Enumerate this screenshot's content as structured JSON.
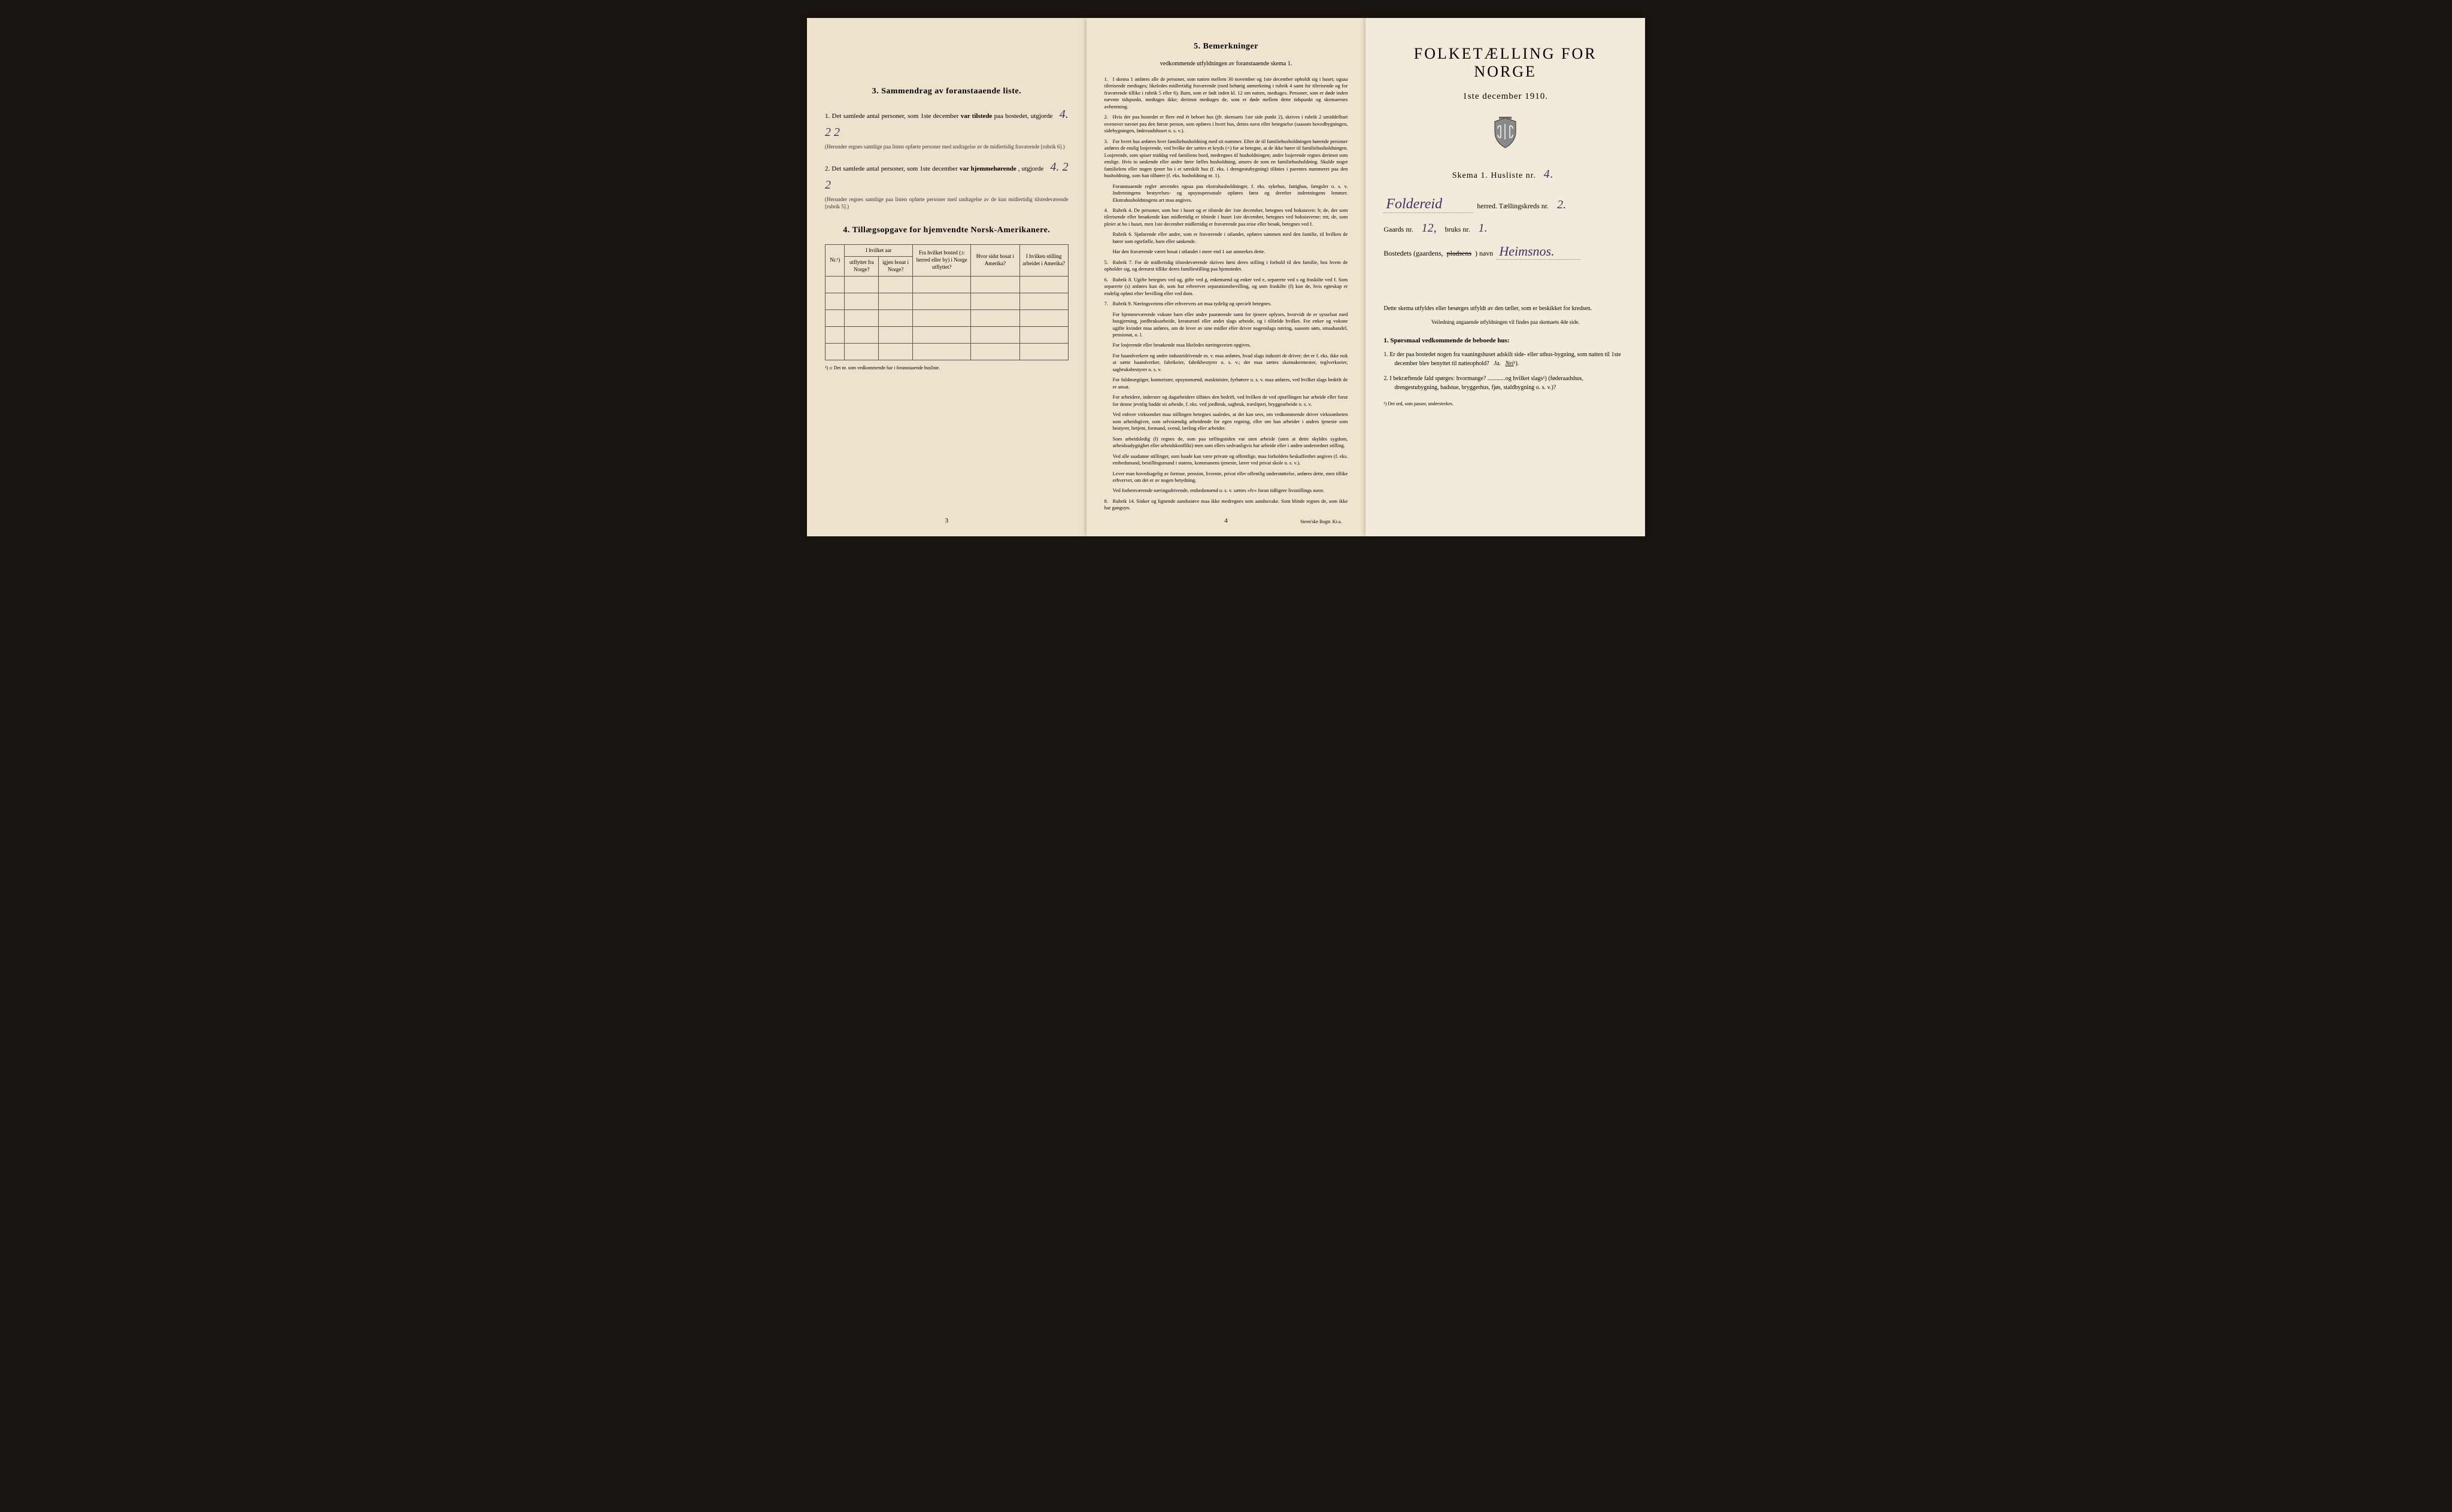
{
  "colors": {
    "background": "#1a1410",
    "paper_left": "#ede3cc",
    "paper_middle": "#efe5cf",
    "paper_right": "#f2eada",
    "text": "#1a1a1a",
    "handwriting": "#3a3560",
    "border": "#555555"
  },
  "page_left": {
    "section3": {
      "heading": "3.   Sammendrag av foranstaaende liste.",
      "item1": {
        "num": "1.",
        "text_before": "Det samlede antal personer, som 1ste december",
        "bold": "var tilstede",
        "text_after": "paa bostedet, utgjorde",
        "handwritten": "4.  2 2",
        "fine_print": "(Herunder regnes samtlige paa listen opførte personer med undtagelse av de midlertidig fraværende [rubrik 6].)"
      },
      "item2": {
        "num": "2.",
        "text_before": "Det samlede antal personer, som 1ste december",
        "bold": "var hjemmehørende",
        "text_after": ", utgjorde",
        "handwritten": "4.  2 2",
        "fine_print": "(Herunder regnes samtlige paa listen opførte personer med undtagelse av de kun midlertidig tilstedeværende [rubrik 5].)"
      }
    },
    "section4": {
      "heading": "4.   Tillægsopgave for hjemvendte Norsk-Amerikanere.",
      "columns": [
        "Nr.¹)",
        "I hvilket aar utflyttet fra Norge?",
        "igjen bosat i Norge?",
        "Fra hvilket bosted (ɔ: herred eller by) i Norge utflyttet?",
        "Hvor sidst bosat i Amerika?",
        "I hvilken stilling arbeidet i Amerika?"
      ],
      "empty_rows": 5,
      "footnote": "¹) ɔ: Det nr. som vedkommende har i foranstaaende husliste."
    },
    "page_number": "3"
  },
  "page_middle": {
    "heading": "5.   Bemerkninger",
    "subheading": "vedkommende utfyldningen av foranstaaende skema 1.",
    "remarks": [
      {
        "num": "1.",
        "text": "I skema 1 anføres alle de personer, som natten mellem 30 november og 1ste december opholdt sig i huset; ogsaa tilreisende medtages; likeledes midlertidig fraværende (med behørig anmerkning i rubrik 4 samt for tilreisende og for fraværende tillike i rubrik 5 eller 6). Barn, som er født inden kl. 12 om natten, medtages. Personer, som er døde inden nævnte tidspunkt, medtages ikke; derimot medtages de, som er døde mellem dette tidspunkt og skemaernes avhentning."
      },
      {
        "num": "2.",
        "text": "Hvis der paa bostedet er flere end ét beboet hus (jfr. skemaets 1ste side punkt 2), skrives i rubrik 2 umiddelbart ovenover navnet paa den første person, som opføres i hvert hus, dettes navn eller betegnelse (saasom hovedbygningen, sidebygningen, føderaadshuset o. s. v.)."
      },
      {
        "num": "3.",
        "text": "For hvert hus anføres hver familiehusholdning med sit nummer. Efter de til familiehusholdningen hørende personer anføres de enslig losjerende, ved hvilke der sættes et kryds (×) for at betegne, at de ikke hører til familiehusholdningen. Losjerende, som spiser middag ved familiens bord, medregnes til husholdningen; andre losjerende regnes derimot som enslige. Hvis to søskende eller andre fører fælles husholdning, ansees de som en familiehusholdning. Skulde noget familielem eller nogen tjener bo i et særskilt hus (f. eks. i drengestubygning) tilføies i parentes nummeret paa den husholdning, som han tilhører (f. eks. husholdning nr. 1).",
        "subs": [
          "Foranstaaende regler anvendes ogsaa paa ekstrahusholdninger, f. eks. sykehus, fattighus, fængsler o. s. v. Indretningens bestyrelses- og opsynspersonale opføres først og derefter indretningens lemmer. Ekstrahusholdningens art maa angives."
        ]
      },
      {
        "num": "4.",
        "text": "Rubrik 4. De personer, som bor i huset og er tilstede der 1ste december, betegnes ved bokstaven: b; de, der som tilreisende eller besøkende kun midlertidig er tilstede i huset 1ste december, betegnes ved bokstaverne: mt; de, som pleier at bo i huset, men 1ste december midlertidig er fraværende paa reise eller besøk, betegnes ved f.",
        "subs": [
          "Rubrik 6. Sjøfarende eller andre, som er fraværende i utlandet, opføres sammen med den familie, til hvilken de hører som egtefælle, barn eller søskende.",
          "Har den fraværende været bosat i utlandet i mere end 1 aar anmerkes dette."
        ]
      },
      {
        "num": "5.",
        "text": "Rubrik 7. For de midlertidig tilstedeværende skrives først deres stilling i forhold til den familie, hos hvem de opholder sig, og dernæst tillike deres familiestilling paa hjemstedet."
      },
      {
        "num": "6.",
        "text": "Rubrik 8. Ugifte betegnes ved ug, gifte ved g, enkemænd og enker ved e, separerte ved s og fraskilte ved f. Som separerte (s) anføres kun de, som har erhvervet separationsbevilling, og som fraskilte (f) kun de, hvis egteskap er endelig opløst efter bevilling eller ved dom."
      },
      {
        "num": "7.",
        "text": "Rubrik 9. Næringsveiens eller erhvervets art maa tydelig og specielt betegnes.",
        "subs": [
          "For hjemmeværende voksne barn eller andre paarørende samt for tjenere oplyses, hvorvidt de er sysselsat med husgjerning, jordbruksarbeide, kreaturstel eller andet slags arbeide, og i tilfælde hvilket. For enker og voksne ugifte kvinder maa anføres, om de lever av sine midler eller driver nogenslags næring, saasom søm, smaahandel, pensionat, o. l.",
          "For losjerende eller besøkende maa likeledes næringsveien opgives.",
          "For haandverkere og andre industridrivende m. v. maa anføres, hvad slags industri de driver; det er f. eks. ikke nok at sætte haandverker, fabrikeier, fabrikbestyrer o. s. v.; der maa sættes skomakermester, teglverkseier, sagbruksbestyrer o. s. v.",
          "For fuldmægtiger, kontorister, opsynsmænd, maskinister, fyrbøtere o. s. v. maa anføres, ved hvilket slags bedrift de er ansat.",
          "For arbeidere, inderster og dagarbeidere tilføies den bedrift, ved hvilken de ved optællingen har arbeide eller forut for denne jevnlig hadde sit arbeide, f. eks. ved jordbruk, sagbruk, træsliperi, bryggearbeide o. s. v.",
          "Ved enhver virksomhet maa stillingen betegnes saaledes, at det kan sees, om vedkommende driver virksomheten som arbeidsgiver, som selvstændig arbeidende for egen regning, eller om han arbeider i andres tjeneste som bestyrer, betjent, formand, svend, lærling eller arbeider.",
          "Som arbeidsledig (l) regnes de, som paa tællingstiden var uten arbeide (uten at dette skyldes sygdom, arbeidsudygtighet eller arbeidskonflikt) men som ellers sedvanligvis har arbeide eller i anden underordnet stilling.",
          "Ved alle saadanne stillinger, som baade kan være private og offentlige, maa forholdets beskaffenhet angives (f. eks. embedsmand, bestillingsmand i statens, kommunens tjeneste, lærer ved privat skole o. s. v.).",
          "Lever man hovedsagelig av formue, pension, livrente, privat eller offentlig understøttelse, anføres dette, men tillike erhvervet, om det er av nogen betydning.",
          "Ved forhenværende næringsdrivende, embedsmænd o. s. v. sættes «fv» foran tidligere livsstillings navn."
        ]
      },
      {
        "num": "8.",
        "text": "Rubrik 14. Sinker og lignende aandssiøve maa ikke medregnes som aandssvake. Som blinde regnes de, som ikke har gangsyn."
      }
    ],
    "page_number": "4",
    "printer": "Steen'ske Bogtr.  Kr.a."
  },
  "page_right": {
    "title": "FOLKETÆLLING FOR NORGE",
    "date": "1ste december 1910.",
    "skema_label": "Skema 1.  Husliste nr.",
    "skema_num": "4.",
    "herred": {
      "handwritten": "Foldereid",
      "label_after": "herred.  Tællingskreds nr.",
      "num": "2."
    },
    "gaards": {
      "label": "Gaards nr.",
      "num1": "12,",
      "label2": "bruks nr.",
      "num2": "1."
    },
    "bosted": {
      "label": "Bostedets (gaardens,",
      "struck": "pladsens",
      "label2": ") navn",
      "handwritten": "Heimsnos."
    },
    "note1": "Dette skema utfyldes eller besørges utfyldt av den tæller, som er beskikket for kredsen.",
    "note2": "Veiledning angaaende utfyldningen vil findes paa skemaets 4de side.",
    "q_heading": "1. Spørsmaal vedkommende de beboede hus:",
    "q1": {
      "num": "1.",
      "text": "Er der paa bostedet nogen fra vaaningshuset adskilt side- eller uthus-bygning, som natten til 1ste december blev benyttet til natteophold?",
      "ja": "Ja.",
      "nei": "Nei",
      "sup": "¹)."
    },
    "q2": {
      "num": "2.",
      "text": "I bekræftende fald spørges: hvormange? ............og hvilket slags¹) (føderaadshus, drengestubygning, badstue, bryggerhus, fjøs, staldbygning o. s. v.)?"
    },
    "footnote": "¹) Det ord, som passer, understrekes."
  }
}
